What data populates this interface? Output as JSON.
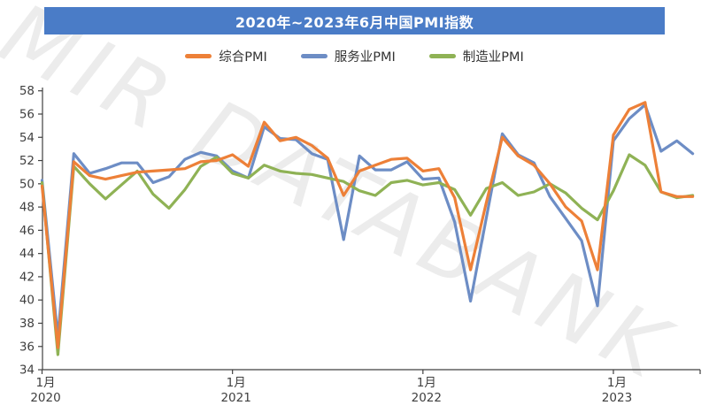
{
  "title": {
    "text": "2020年~2023年6月中国PMI指数"
  },
  "watermark": {
    "text": "MIR DATABANK"
  },
  "colors": {
    "title_bar": "#4A7CC7",
    "composite": "#ED8038",
    "services": "#6D8DC5",
    "manufacturing": "#8FB255",
    "axis_line": "#404040",
    "tick_label": "#3F3F3F"
  },
  "legend": {
    "items": [
      {
        "label": "综合PMI",
        "color": "#ED8038"
      },
      {
        "label": "服务业PMI",
        "color": "#6D8DC5"
      },
      {
        "label": "制造业PMI",
        "color": "#8FB255"
      }
    ]
  },
  "chart_data": {
    "type": "line",
    "title": "2020年~2023年6月中国PMI指数",
    "xlabel": "",
    "ylabel": "",
    "ylim": [
      34,
      58
    ],
    "yticks": [
      34,
      36,
      38,
      40,
      42,
      44,
      46,
      48,
      50,
      52,
      54,
      56,
      58
    ],
    "grid": false,
    "legend_position": "top",
    "categories": [
      "2020-01",
      "2020-02",
      "2020-03",
      "2020-04",
      "2020-05",
      "2020-06",
      "2020-07",
      "2020-08",
      "2020-09",
      "2020-10",
      "2020-11",
      "2020-12",
      "2021-01",
      "2021-02",
      "2021-03",
      "2021-04",
      "2021-05",
      "2021-06",
      "2021-07",
      "2021-08",
      "2021-09",
      "2021-10",
      "2021-11",
      "2021-12",
      "2022-01",
      "2022-02",
      "2022-03",
      "2022-04",
      "2022-05",
      "2022-06",
      "2022-07",
      "2022-08",
      "2022-09",
      "2022-10",
      "2022-11",
      "2022-12",
      "2023-01",
      "2023-02",
      "2023-03",
      "2023-04",
      "2023-05",
      "2023-06"
    ],
    "xticks": [
      {
        "index": 0,
        "month_label": "1月",
        "year_label": "2020"
      },
      {
        "index": 12,
        "month_label": "1月",
        "year_label": "2021"
      },
      {
        "index": 24,
        "month_label": "1月",
        "year_label": "2022"
      },
      {
        "index": 36,
        "month_label": "1月",
        "year_label": "2023"
      }
    ],
    "series": [
      {
        "name": "综合PMI",
        "color": "#ED8038",
        "values": [
          49.8,
          35.9,
          51.9,
          50.7,
          50.4,
          50.7,
          51.0,
          51.1,
          51.2,
          51.3,
          51.9,
          52.0,
          52.5,
          51.5,
          55.3,
          53.7,
          54.0,
          53.3,
          52.2,
          49.0,
          51.1,
          51.6,
          52.1,
          52.2,
          51.1,
          51.3,
          48.8,
          42.6,
          48.4,
          54.0,
          52.4,
          51.6,
          50.0,
          48.0,
          46.8,
          42.6,
          54.2,
          56.4,
          57.0,
          49.3,
          48.9,
          48.9
        ]
      },
      {
        "name": "服务业PMI",
        "color": "#6D8DC5",
        "values": [
          50.3,
          36.8,
          52.6,
          50.9,
          51.3,
          51.8,
          51.8,
          50.1,
          50.6,
          52.1,
          52.7,
          52.4,
          51.1,
          50.5,
          54.9,
          53.9,
          53.8,
          52.6,
          52.1,
          45.2,
          52.4,
          51.2,
          51.2,
          51.9,
          50.4,
          50.5,
          46.7,
          39.9,
          47.1,
          54.3,
          52.5,
          51.8,
          48.9,
          47.0,
          45.1,
          39.5,
          53.7,
          55.6,
          56.8,
          52.8,
          53.7,
          52.6
        ]
      },
      {
        "name": "制造业PMI",
        "color": "#8FB255",
        "values": [
          50.1,
          35.3,
          51.5,
          50.0,
          48.7,
          49.9,
          51.1,
          49.1,
          47.9,
          49.5,
          51.5,
          52.3,
          50.9,
          50.5,
          51.6,
          51.1,
          50.9,
          50.8,
          50.5,
          50.2,
          49.4,
          49.0,
          50.1,
          50.3,
          49.9,
          50.1,
          49.5,
          47.3,
          49.6,
          50.1,
          49.0,
          49.3,
          50.0,
          49.2,
          47.9,
          46.9,
          49.4,
          52.5,
          51.6,
          49.3,
          48.8,
          49.0
        ]
      }
    ]
  }
}
